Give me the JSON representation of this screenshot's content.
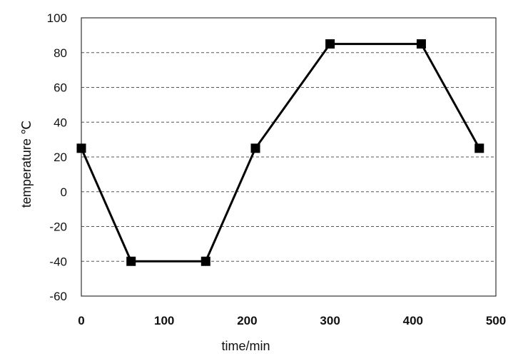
{
  "chart_data": {
    "type": "line",
    "xlabel": "time/min",
    "ylabel": "temperature ℃",
    "xlim": [
      0,
      500
    ],
    "ylim": [
      -60,
      100
    ],
    "x_ticks": [
      "0",
      "100",
      "200",
      "300",
      "400",
      "500"
    ],
    "y_ticks": [
      "-60",
      "-40",
      "-20",
      "0",
      "20",
      "40",
      "60",
      "80",
      "100"
    ],
    "grid": "horizontal dashed",
    "series": [
      {
        "marker": "square",
        "color": "#000000",
        "x": [
          0,
          60,
          150,
          210,
          300,
          410,
          480
        ],
        "y": [
          25,
          -40,
          -40,
          25,
          85,
          85,
          25
        ]
      }
    ]
  }
}
